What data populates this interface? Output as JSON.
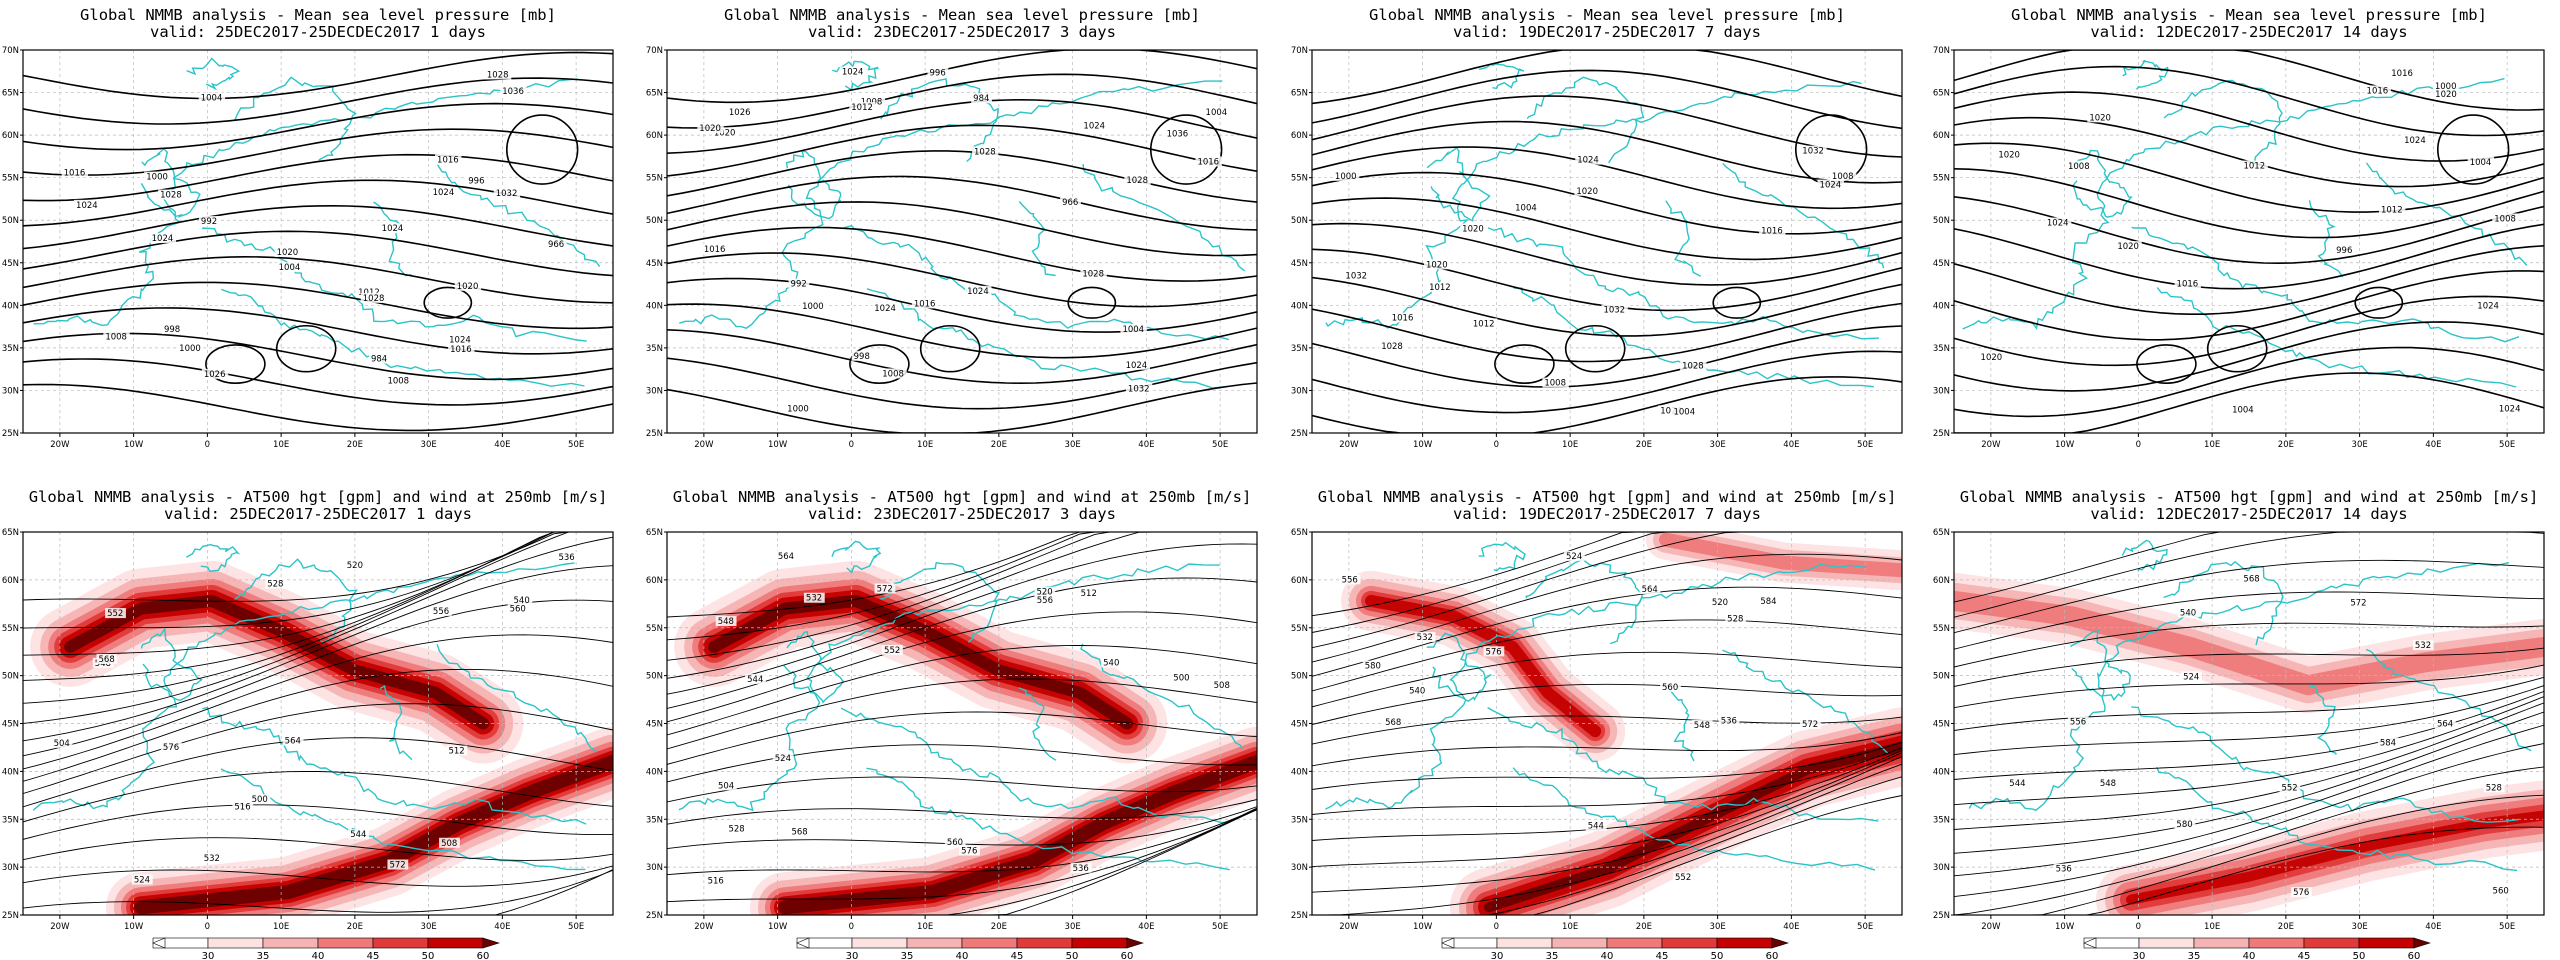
{
  "palette": {
    "coast": "#2bc4c8",
    "contour": "#000000",
    "grid": "#b9b9b9",
    "wind": [
      "#fde2e2",
      "#f6b3b3",
      "#ee7a7a",
      "#e03a3a",
      "#c40000",
      "#6a0000"
    ]
  },
  "chart_data": [
    {
      "type": "contour",
      "title": "Global NMMB analysis - Mean sea level pressure [mb]",
      "subtitle": "valid: 25DEC2017-25DECDEC2017  1 days",
      "xticks": [
        "20W",
        "10W",
        "0",
        "10E",
        "20E",
        "30E",
        "40E",
        "50E"
      ],
      "yticks": [
        "70N",
        "65N",
        "60N",
        "55N",
        "50N",
        "45N",
        "40N",
        "35N",
        "30N",
        "25N"
      ],
      "contour_labels": [
        "1008",
        "1004",
        "998",
        "1000",
        "996",
        "984",
        "966",
        "992",
        "1004",
        "1000",
        "1008",
        "1016",
        "1020",
        "1012",
        "1024",
        "1028",
        "1024",
        "1036",
        "1020",
        "1032",
        "1024",
        "1028",
        "1026",
        "1016",
        "1024",
        "1016",
        "1024",
        "1028"
      ],
      "colorbar": false
    },
    {
      "type": "contour",
      "title": "Global NMMB analysis - Mean sea level pressure [mb]",
      "subtitle": "valid: 23DEC2017-25DEC2017  3 days",
      "xticks": [
        "20W",
        "10W",
        "0",
        "10E",
        "20E",
        "30E",
        "40E",
        "50E"
      ],
      "yticks": [
        "70N",
        "65N",
        "60N",
        "55N",
        "50N",
        "45N",
        "40N",
        "35N",
        "30N",
        "25N"
      ],
      "contour_labels": [
        "1008",
        "1004",
        "998",
        "1000",
        "996",
        "984",
        "966",
        "992",
        "1004",
        "1000",
        "1008",
        "1016",
        "1020",
        "1012",
        "1024",
        "1028",
        "1024",
        "1036",
        "1020",
        "1032",
        "1024",
        "1028",
        "1026",
        "1016",
        "1024",
        "1016",
        "1024",
        "1028"
      ],
      "colorbar": false
    },
    {
      "type": "contour",
      "title": "Global NMMB analysis - Mean sea level pressure [mb]",
      "subtitle": "valid: 19DEC2017-25DEC2017  7 days",
      "xticks": [
        "20W",
        "10W",
        "0",
        "10E",
        "20E",
        "30E",
        "40E",
        "50E"
      ],
      "yticks": [
        "70N",
        "65N",
        "60N",
        "55N",
        "50N",
        "45N",
        "40N",
        "35N",
        "30N",
        "25N"
      ],
      "contour_labels": [
        "1000",
        "1004",
        "1008",
        "1012",
        "1016",
        "1020",
        "1024",
        "1028",
        "1032",
        "1020",
        "1024",
        "1032",
        "1028",
        "1032",
        "1024",
        "1020",
        "1004",
        "1008",
        "1012",
        "1016"
      ],
      "colorbar": false
    },
    {
      "type": "contour",
      "title": "Global NMMB analysis - Mean sea level pressure [mb]",
      "subtitle": "valid: 12DEC2017-25DEC2017  14 days",
      "xticks": [
        "20W",
        "10W",
        "0",
        "10E",
        "20E",
        "30E",
        "40E",
        "50E"
      ],
      "yticks": [
        "70N",
        "65N",
        "60N",
        "55N",
        "50N",
        "45N",
        "40N",
        "35N",
        "30N",
        "25N"
      ],
      "contour_labels": [
        "996",
        "1000",
        "1004",
        "1008",
        "1012",
        "1016",
        "1020",
        "1024",
        "1020",
        "1024",
        "1020",
        "1024",
        "1020",
        "1016",
        "1020",
        "1024",
        "1004",
        "1008",
        "1012",
        "1016"
      ],
      "colorbar": false
    },
    {
      "type": "contour",
      "title": "Global NMMB analysis - AT500 hgt [gpm] and wind at 250mb [m/s]",
      "subtitle": "valid: 25DEC2017-25DEC2017  1 days",
      "xticks": [
        "20W",
        "10W",
        "0",
        "10E",
        "20E",
        "30E",
        "40E",
        "50E"
      ],
      "yticks": [
        "65N",
        "60N",
        "55N",
        "50N",
        "45N",
        "40N",
        "35N",
        "30N",
        "25N"
      ],
      "contour_labels": [
        "516",
        "500",
        "520",
        "524",
        "528",
        "532",
        "536",
        "540",
        "544",
        "548",
        "552",
        "556",
        "560",
        "564",
        "568",
        "572",
        "576",
        "504",
        "508",
        "512"
      ],
      "colorbar": true,
      "colorbar_ticks": [
        "30",
        "35",
        "40",
        "45",
        "50",
        "60"
      ]
    },
    {
      "type": "contour",
      "title": "Global NMMB analysis - AT500 hgt [gpm] and wind at 250mb [m/s]",
      "subtitle": "valid: 23DEC2017-25DEC2017  3 days",
      "xticks": [
        "20W",
        "10W",
        "0",
        "10E",
        "20E",
        "30E",
        "40E",
        "50E"
      ],
      "yticks": [
        "65N",
        "60N",
        "55N",
        "50N",
        "45N",
        "40N",
        "35N",
        "30N",
        "25N"
      ],
      "contour_labels": [
        "516",
        "500",
        "520",
        "524",
        "528",
        "532",
        "536",
        "540",
        "544",
        "548",
        "552",
        "556",
        "560",
        "564",
        "568",
        "572",
        "576",
        "504",
        "508",
        "512"
      ],
      "colorbar": true,
      "colorbar_ticks": [
        "30",
        "35",
        "40",
        "45",
        "50",
        "60"
      ]
    },
    {
      "type": "contour",
      "title": "Global NMMB analysis - AT500 hgt [gpm] and wind at 250mb [m/s]",
      "subtitle": "valid: 19DEC2017-25DEC2017  7 days",
      "xticks": [
        "20W",
        "10W",
        "0",
        "10E",
        "20E",
        "30E",
        "40E",
        "50E"
      ],
      "yticks": [
        "65N",
        "60N",
        "55N",
        "50N",
        "45N",
        "40N",
        "35N",
        "30N",
        "25N"
      ],
      "contour_labels": [
        "520",
        "524",
        "528",
        "532",
        "536",
        "540",
        "544",
        "548",
        "552",
        "556",
        "560",
        "564",
        "568",
        "572",
        "576",
        "580",
        "584"
      ],
      "colorbar": true,
      "colorbar_ticks": [
        "30",
        "35",
        "40",
        "45",
        "50",
        "60"
      ]
    },
    {
      "type": "contour",
      "title": "Global NMMB analysis - AT500 hgt [gpm] and wind at 250mb [m/s]",
      "subtitle": "valid: 12DEC2017-25DEC2017  14 days",
      "xticks": [
        "20W",
        "10W",
        "0",
        "10E",
        "20E",
        "30E",
        "40E",
        "50E"
      ],
      "yticks": [
        "65N",
        "60N",
        "55N",
        "50N",
        "45N",
        "40N",
        "35N",
        "30N",
        "25N"
      ],
      "contour_labels": [
        "524",
        "528",
        "532",
        "536",
        "540",
        "544",
        "548",
        "552",
        "556",
        "560",
        "564",
        "568",
        "572",
        "576",
        "580",
        "584"
      ],
      "colorbar": true,
      "colorbar_ticks": [
        "30",
        "35",
        "40",
        "45",
        "50",
        "60"
      ]
    }
  ]
}
